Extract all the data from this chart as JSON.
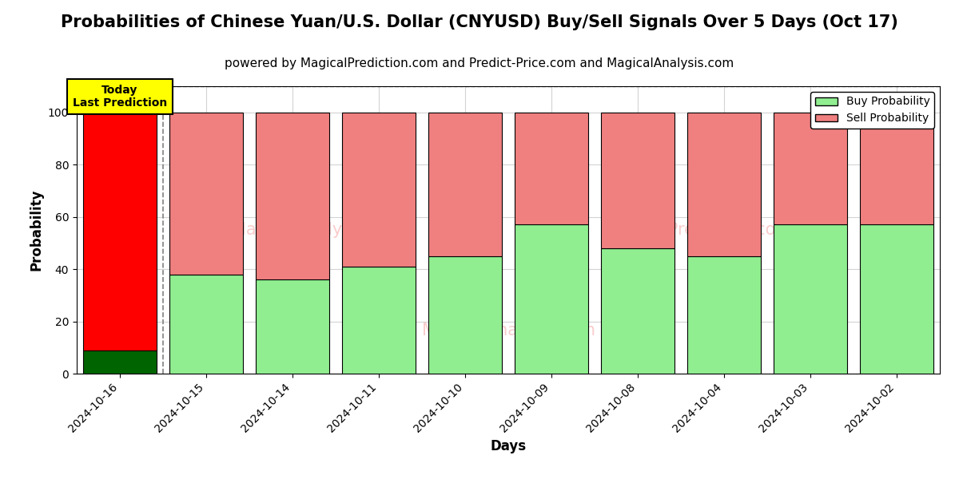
{
  "title": "Probabilities of Chinese Yuan/U.S. Dollar (CNYUSD) Buy/Sell Signals Over 5 Days (Oct 17)",
  "subtitle": "powered by MagicalPrediction.com and Predict-Price.com and MagicalAnalysis.com",
  "xlabel": "Days",
  "ylabel": "Probability",
  "categories": [
    "2024-10-16",
    "2024-10-15",
    "2024-10-14",
    "2024-10-11",
    "2024-10-10",
    "2024-10-09",
    "2024-10-08",
    "2024-10-04",
    "2024-10-03",
    "2024-10-02"
  ],
  "buy_values": [
    9,
    38,
    36,
    41,
    45,
    57,
    48,
    45,
    57,
    57
  ],
  "sell_values": [
    91,
    62,
    64,
    59,
    55,
    43,
    52,
    55,
    43,
    43
  ],
  "today_buy_color": "#006400",
  "today_sell_color": "#ff0000",
  "buy_color": "#90ee90",
  "sell_color": "#f08080",
  "today_annotation_bg": "#ffff00",
  "today_annotation_text": "Today\nLast Prediction",
  "ylim": [
    0,
    110
  ],
  "yticks": [
    0,
    20,
    40,
    60,
    80,
    100
  ],
  "dashed_line_y": 110,
  "title_fontsize": 15,
  "subtitle_fontsize": 11,
  "label_fontsize": 12,
  "tick_fontsize": 10,
  "bar_width": 0.85
}
